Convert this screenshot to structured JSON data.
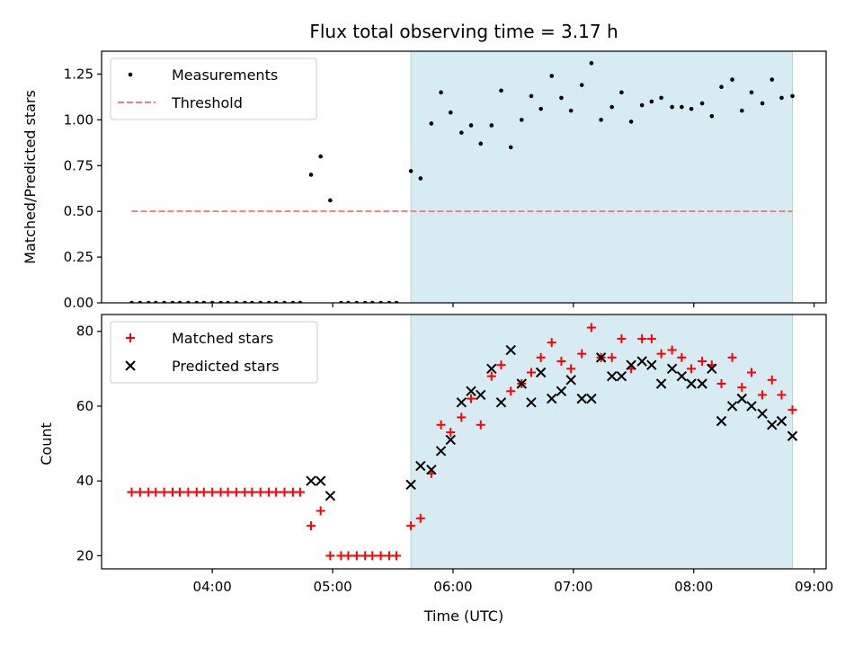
{
  "colors": {
    "shade": "#add8e6",
    "threshold": "#f08080",
    "matched": "#ff0000",
    "predicted": "#000000",
    "measurement": "#000000"
  },
  "chart_data": [
    {
      "type": "scatter",
      "title": "Flux total observing time = 3.17 h",
      "xlabel": "",
      "ylabel": "Matched/Predicted stars",
      "xlim": [
        3.08,
        9.1
      ],
      "ylim": [
        0,
        1.375
      ],
      "yticks": [
        "0.00",
        "0.25",
        "0.50",
        "0.75",
        "1.00",
        "1.25"
      ],
      "grid": false,
      "legend_position": "top-left",
      "shaded_region": {
        "x": [
          5.65,
          8.82
        ]
      },
      "series": [
        {
          "name": "Measurements",
          "marker": "dot",
          "points": [
            [
              3.33,
              0
            ],
            [
              3.4,
              0
            ],
            [
              3.47,
              0
            ],
            [
              3.53,
              0
            ],
            [
              3.6,
              0
            ],
            [
              3.67,
              0
            ],
            [
              3.73,
              0
            ],
            [
              3.8,
              0
            ],
            [
              3.87,
              0
            ],
            [
              3.93,
              0
            ],
            [
              4.0,
              0
            ],
            [
              4.07,
              0
            ],
            [
              4.13,
              0
            ],
            [
              4.2,
              0
            ],
            [
              4.27,
              0
            ],
            [
              4.33,
              0
            ],
            [
              4.4,
              0
            ],
            [
              4.47,
              0
            ],
            [
              4.53,
              0
            ],
            [
              4.6,
              0
            ],
            [
              4.67,
              0
            ],
            [
              4.73,
              0
            ],
            [
              4.82,
              0.7
            ],
            [
              4.9,
              0.8
            ],
            [
              4.98,
              0.56
            ],
            [
              5.07,
              0
            ],
            [
              5.13,
              0
            ],
            [
              5.2,
              0
            ],
            [
              5.27,
              0
            ],
            [
              5.33,
              0
            ],
            [
              5.4,
              0
            ],
            [
              5.47,
              0
            ],
            [
              5.53,
              0
            ],
            [
              5.65,
              0.72
            ],
            [
              5.73,
              0.68
            ],
            [
              5.82,
              0.98
            ],
            [
              5.9,
              1.15
            ],
            [
              5.98,
              1.04
            ],
            [
              6.07,
              0.93
            ],
            [
              6.15,
              0.97
            ],
            [
              6.23,
              0.87
            ],
            [
              6.32,
              0.97
            ],
            [
              6.4,
              1.16
            ],
            [
              6.48,
              0.85
            ],
            [
              6.57,
              1.0
            ],
            [
              6.65,
              1.13
            ],
            [
              6.73,
              1.06
            ],
            [
              6.82,
              1.24
            ],
            [
              6.9,
              1.12
            ],
            [
              6.98,
              1.05
            ],
            [
              7.07,
              1.19
            ],
            [
              7.15,
              1.31
            ],
            [
              7.23,
              1.0
            ],
            [
              7.32,
              1.07
            ],
            [
              7.4,
              1.15
            ],
            [
              7.48,
              0.99
            ],
            [
              7.57,
              1.08
            ],
            [
              7.65,
              1.1
            ],
            [
              7.73,
              1.12
            ],
            [
              7.82,
              1.07
            ],
            [
              7.9,
              1.07
            ],
            [
              7.98,
              1.06
            ],
            [
              8.07,
              1.09
            ],
            [
              8.15,
              1.02
            ],
            [
              8.23,
              1.18
            ],
            [
              8.32,
              1.22
            ],
            [
              8.4,
              1.05
            ],
            [
              8.48,
              1.15
            ],
            [
              8.57,
              1.09
            ],
            [
              8.65,
              1.22
            ],
            [
              8.73,
              1.12
            ],
            [
              8.82,
              1.13
            ]
          ]
        },
        {
          "name": "Threshold",
          "style": "dashed",
          "points": [
            [
              3.33,
              0.5
            ],
            [
              8.82,
              0.5
            ]
          ]
        }
      ]
    },
    {
      "type": "scatter",
      "title": "",
      "xlabel": "Time (UTC)",
      "ylabel": "Count",
      "xlim": [
        3.08,
        9.1
      ],
      "ylim": [
        16.5,
        84.5
      ],
      "yticks": [
        "20",
        "40",
        "60",
        "80"
      ],
      "xticks": [
        "04:00",
        "05:00",
        "06:00",
        "07:00",
        "08:00",
        "09:00"
      ],
      "grid": false,
      "legend_position": "top-left",
      "shaded_region": {
        "x": [
          5.65,
          8.82
        ]
      },
      "series": [
        {
          "name": "Matched stars",
          "marker": "plus",
          "points": [
            [
              3.33,
              37
            ],
            [
              3.4,
              37
            ],
            [
              3.47,
              37
            ],
            [
              3.53,
              37
            ],
            [
              3.6,
              37
            ],
            [
              3.67,
              37
            ],
            [
              3.73,
              37
            ],
            [
              3.8,
              37
            ],
            [
              3.87,
              37
            ],
            [
              3.93,
              37
            ],
            [
              4.0,
              37
            ],
            [
              4.07,
              37
            ],
            [
              4.13,
              37
            ],
            [
              4.2,
              37
            ],
            [
              4.27,
              37
            ],
            [
              4.33,
              37
            ],
            [
              4.4,
              37
            ],
            [
              4.47,
              37
            ],
            [
              4.53,
              37
            ],
            [
              4.6,
              37
            ],
            [
              4.67,
              37
            ],
            [
              4.73,
              37
            ],
            [
              4.82,
              28
            ],
            [
              4.9,
              32
            ],
            [
              4.98,
              20
            ],
            [
              5.07,
              20
            ],
            [
              5.13,
              20
            ],
            [
              5.2,
              20
            ],
            [
              5.27,
              20
            ],
            [
              5.33,
              20
            ],
            [
              5.4,
              20
            ],
            [
              5.47,
              20
            ],
            [
              5.53,
              20
            ],
            [
              5.65,
              28
            ],
            [
              5.73,
              30
            ],
            [
              5.82,
              42
            ],
            [
              5.9,
              55
            ],
            [
              5.98,
              53
            ],
            [
              6.07,
              57
            ],
            [
              6.15,
              62
            ],
            [
              6.23,
              55
            ],
            [
              6.32,
              68
            ],
            [
              6.4,
              71
            ],
            [
              6.48,
              64
            ],
            [
              6.57,
              66
            ],
            [
              6.65,
              69
            ],
            [
              6.73,
              73
            ],
            [
              6.82,
              77
            ],
            [
              6.9,
              72
            ],
            [
              6.98,
              70
            ],
            [
              7.07,
              74
            ],
            [
              7.15,
              81
            ],
            [
              7.23,
              73
            ],
            [
              7.32,
              73
            ],
            [
              7.4,
              78
            ],
            [
              7.48,
              70
            ],
            [
              7.57,
              78
            ],
            [
              7.65,
              78
            ],
            [
              7.73,
              74
            ],
            [
              7.82,
              75
            ],
            [
              7.9,
              73
            ],
            [
              7.98,
              70
            ],
            [
              8.07,
              72
            ],
            [
              8.15,
              71
            ],
            [
              8.23,
              66
            ],
            [
              8.32,
              73
            ],
            [
              8.4,
              65
            ],
            [
              8.48,
              69
            ],
            [
              8.57,
              63
            ],
            [
              8.65,
              67
            ],
            [
              8.73,
              63
            ],
            [
              8.82,
              59
            ]
          ]
        },
        {
          "name": "Predicted stars",
          "marker": "x",
          "points": [
            [
              4.82,
              40
            ],
            [
              4.9,
              40
            ],
            [
              4.98,
              36
            ],
            [
              5.65,
              39
            ],
            [
              5.73,
              44
            ],
            [
              5.82,
              43
            ],
            [
              5.9,
              48
            ],
            [
              5.98,
              51
            ],
            [
              6.07,
              61
            ],
            [
              6.15,
              64
            ],
            [
              6.23,
              63
            ],
            [
              6.32,
              70
            ],
            [
              6.4,
              61
            ],
            [
              6.48,
              75
            ],
            [
              6.57,
              66
            ],
            [
              6.65,
              61
            ],
            [
              6.73,
              69
            ],
            [
              6.82,
              62
            ],
            [
              6.9,
              64
            ],
            [
              6.98,
              67
            ],
            [
              7.07,
              62
            ],
            [
              7.15,
              62
            ],
            [
              7.23,
              73
            ],
            [
              7.32,
              68
            ],
            [
              7.4,
              68
            ],
            [
              7.48,
              71
            ],
            [
              7.57,
              72
            ],
            [
              7.65,
              71
            ],
            [
              7.73,
              66
            ],
            [
              7.82,
              70
            ],
            [
              7.9,
              68
            ],
            [
              7.98,
              66
            ],
            [
              8.07,
              66
            ],
            [
              8.15,
              70
            ],
            [
              8.23,
              56
            ],
            [
              8.32,
              60
            ],
            [
              8.4,
              62
            ],
            [
              8.48,
              60
            ],
            [
              8.57,
              58
            ],
            [
              8.65,
              55
            ],
            [
              8.73,
              56
            ],
            [
              8.82,
              52
            ]
          ]
        }
      ]
    }
  ]
}
